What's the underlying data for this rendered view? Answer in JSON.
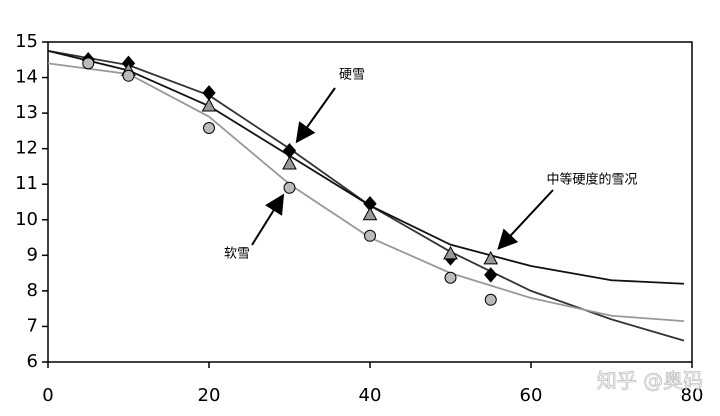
{
  "chart_data": {
    "type": "scatter",
    "xlim": [
      0,
      80
    ],
    "xticks": [
      0,
      20,
      40,
      60,
      80
    ],
    "ylim": [
      6,
      15
    ],
    "yticks": [
      6,
      7,
      8,
      9,
      10,
      11,
      12,
      13,
      14,
      15
    ],
    "series": [
      {
        "name": "硬雪",
        "marker": "diamond",
        "color": "#000000",
        "curve_color": "#333333",
        "x": [
          5,
          10,
          20,
          30,
          40,
          50,
          55
        ],
        "values": [
          14.5,
          14.4,
          13.57,
          11.94,
          10.45,
          8.93,
          8.45
        ],
        "curve": {
          "x": [
            0,
            10,
            20,
            30,
            40,
            50,
            60,
            70,
            79
          ],
          "values": [
            14.75,
            14.35,
            13.5,
            12.0,
            10.4,
            9.1,
            8.0,
            7.2,
            6.6
          ]
        }
      },
      {
        "name": "中等硬度的雪况",
        "marker": "triangle",
        "color": "#999999",
        "curve_color": "#111111",
        "x": [
          10,
          20,
          30,
          40,
          50,
          55
        ],
        "values": [
          14.2,
          13.2,
          11.57,
          10.14,
          9.04,
          8.9
        ],
        "curve": {
          "x": [
            0,
            10,
            20,
            30,
            40,
            50,
            60,
            70,
            79
          ],
          "values": [
            14.75,
            14.2,
            13.2,
            11.8,
            10.4,
            9.3,
            8.7,
            8.3,
            8.2
          ]
        }
      },
      {
        "name": "软雪",
        "marker": "circle",
        "color": "#bbbbbb",
        "curve_color": "#999999",
        "x": [
          5,
          10,
          20,
          30,
          40,
          50,
          55
        ],
        "values": [
          14.4,
          14.05,
          12.58,
          10.9,
          9.55,
          8.37,
          7.75
        ],
        "curve": {
          "x": [
            0,
            10,
            20,
            30,
            40,
            50,
            60,
            70,
            79
          ],
          "values": [
            14.4,
            14.1,
            12.9,
            11.0,
            9.5,
            8.5,
            7.8,
            7.3,
            7.15
          ]
        }
      }
    ],
    "watermark": "知乎 @奥码"
  }
}
